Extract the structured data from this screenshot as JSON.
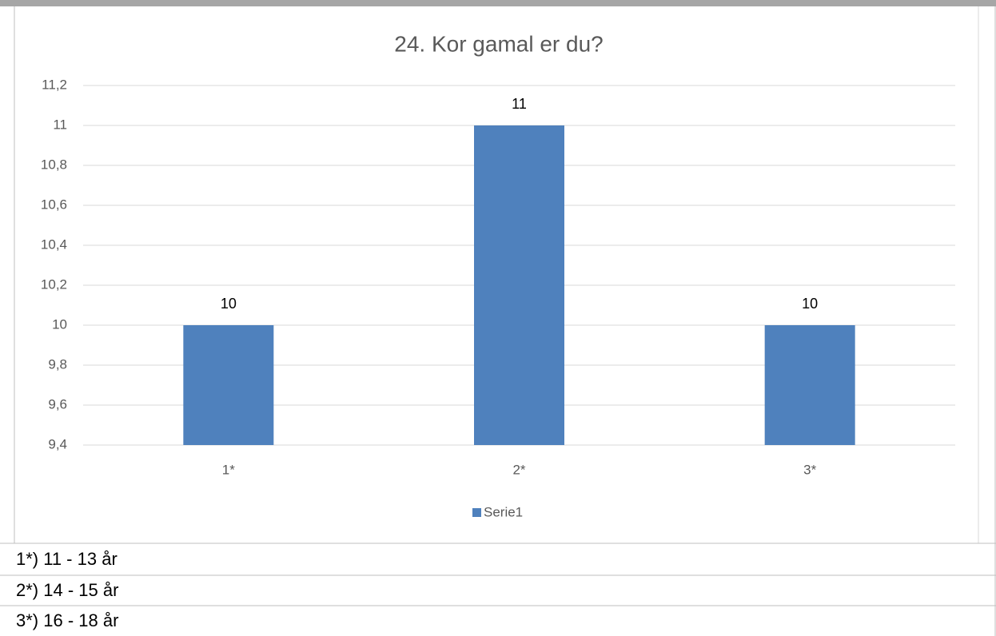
{
  "chart_data": {
    "type": "bar",
    "title": "24. Kor gamal er du?",
    "categories": [
      "1*",
      "2*",
      "3*"
    ],
    "series": [
      {
        "name": "Serie1",
        "color": "#4f81bd",
        "values": [
          10,
          11,
          10
        ]
      }
    ],
    "ylim": [
      9.4,
      11.2
    ],
    "yticks": [
      {
        "value": 9.4,
        "label": "9,4"
      },
      {
        "value": 9.6,
        "label": "9,6"
      },
      {
        "value": 9.8,
        "label": "9,8"
      },
      10,
      {
        "value": 10.2,
        "label": "10,2"
      },
      {
        "value": 10.4,
        "label": "10,4"
      },
      {
        "value": 10.6,
        "label": "10,6"
      },
      {
        "value": 10.8,
        "label": "10,8"
      },
      11,
      {
        "value": 11.2,
        "label": "11,2"
      }
    ],
    "grid": true,
    "legend": "bottom"
  },
  "notes": [
    "1*) 11 - 13 år",
    "2*) 14 - 15 år",
    "3*) 16 - 18 år"
  ]
}
